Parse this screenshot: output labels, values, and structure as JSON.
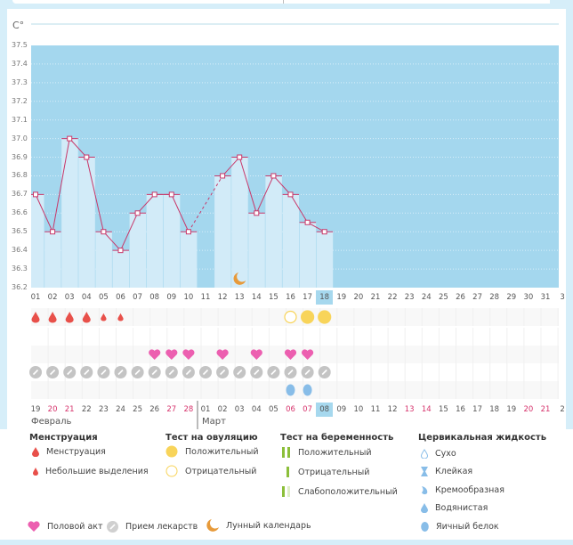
{
  "unit": "C°",
  "y_ticks": [
    "37.5",
    "37.4",
    "37.3",
    "37.2",
    "37.1",
    "37.0",
    "36.9",
    "36.8",
    "36.7",
    "36.6",
    "36.5",
    "36.4",
    "36.3",
    "36.2"
  ],
  "chart_data": {
    "type": "bar",
    "ylim": [
      36.2,
      37.5
    ],
    "grid": true,
    "cycle_days": [
      "01",
      "02",
      "03",
      "04",
      "05",
      "06",
      "07",
      "08",
      "09",
      "10",
      "11",
      "12",
      "13",
      "14",
      "15",
      "16",
      "17",
      "18",
      "19",
      "20",
      "21",
      "22",
      "23",
      "24",
      "25",
      "26",
      "27",
      "28",
      "29",
      "30",
      "31",
      "3"
    ],
    "temperatures": [
      36.7,
      36.5,
      37.0,
      36.9,
      36.5,
      36.4,
      36.6,
      36.7,
      36.7,
      36.5,
      null,
      36.8,
      36.9,
      36.6,
      36.8,
      36.7,
      36.55,
      36.5
    ],
    "current_day": "18"
  },
  "dates": [
    "19",
    "20",
    "21",
    "22",
    "23",
    "24",
    "25",
    "26",
    "27",
    "28",
    "01",
    "02",
    "03",
    "04",
    "05",
    "06",
    "07",
    "08",
    "09",
    "10",
    "11",
    "12",
    "13",
    "14",
    "15",
    "16",
    "17",
    "18",
    "19",
    "20",
    "21",
    "2"
  ],
  "weekend_indices": [
    1,
    2,
    8,
    9,
    15,
    16,
    22,
    23,
    29,
    30
  ],
  "months": [
    "Февраль",
    "Март"
  ],
  "markers": {
    "menstruation": [
      "heavy",
      "heavy",
      "heavy",
      "heavy",
      "light",
      "light"
    ],
    "ovulation_test": {
      "15": "negative",
      "16": "positive",
      "17": "positive"
    },
    "intercourse_days": [
      7,
      8,
      9,
      11,
      13,
      15,
      16
    ],
    "medication_days": [
      0,
      1,
      2,
      3,
      4,
      5,
      6,
      7,
      8,
      9,
      10,
      11,
      12,
      13,
      14,
      15,
      16,
      17
    ],
    "cervical_egg_white_days": [
      15,
      16
    ],
    "moon_day": 12
  },
  "colors": {
    "bg": "#a4d7ee",
    "bar": "#d2ebf8",
    "line": "#c8386a",
    "blood": "#e8504a",
    "ovulation": "#f8d45a",
    "heart": "#ec5fb0",
    "pill": "#c4c4c4",
    "moon": "#e79a3a",
    "fluid": "#88bde8",
    "highlight": "#a6d8ee"
  },
  "legend": {
    "menstruation": {
      "title": "Менструация",
      "items": [
        "Менструация",
        "Небольшие выделения"
      ]
    },
    "ovulation": {
      "title": "Тест на овуляцию",
      "items": [
        "Положительный",
        "Отрицательный"
      ]
    },
    "pregnancy": {
      "title": "Тест на беременность",
      "items": [
        "Положительный",
        "Отрицательный",
        "Слабоположительный"
      ]
    },
    "cervical": {
      "title": "Цервикальная жидкость",
      "items": [
        "Сухо",
        "Клейкая",
        "Кремообразная",
        "Водянистая",
        "Яичный белок"
      ]
    },
    "other": [
      "Половой акт",
      "Прием лекарств",
      "Лунный календарь"
    ]
  }
}
